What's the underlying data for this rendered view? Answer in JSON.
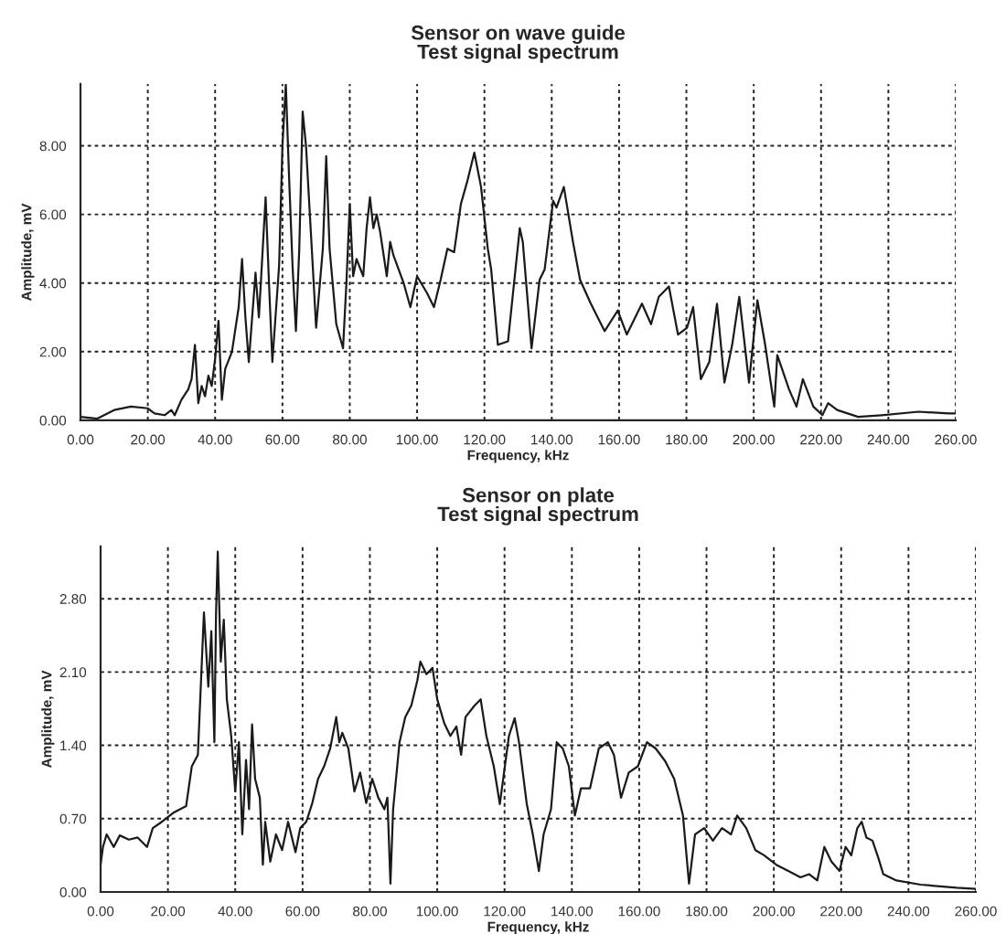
{
  "chart_data": [
    {
      "type": "line",
      "title": "Sensor on wave guide\nTest signal spectrum",
      "xlabel": "Frequency, kHz",
      "ylabel": "Amplitude, mV",
      "grid": true,
      "line_style": "solid",
      "xlim": [
        0,
        260
      ],
      "ylim": [
        0,
        9.8
      ],
      "xticks": [
        {
          "value": 0,
          "label": "0.00"
        },
        {
          "value": 20,
          "label": "20.00"
        },
        {
          "value": 40,
          "label": "40.00"
        },
        {
          "value": 60,
          "label": "60.00"
        },
        {
          "value": 80,
          "label": "80.00"
        },
        {
          "value": 100,
          "label": "100.00"
        },
        {
          "value": 120,
          "label": "120.00"
        },
        {
          "value": 140,
          "label": "140.00"
        },
        {
          "value": 160,
          "label": "160.00"
        },
        {
          "value": 180,
          "label": "180.00"
        },
        {
          "value": 200,
          "label": "200.00"
        },
        {
          "value": 220,
          "label": "220.00"
        },
        {
          "value": 240,
          "label": "240.00"
        },
        {
          "value": 260,
          "label": "260.00"
        }
      ],
      "yticks": [
        {
          "value": 0,
          "label": "0.00"
        },
        {
          "value": 2,
          "label": "2.00"
        },
        {
          "value": 4,
          "label": "4.00"
        },
        {
          "value": 6,
          "label": "6.00"
        },
        {
          "value": 8,
          "label": "8.00"
        }
      ],
      "x": [
        0,
        5,
        10,
        15,
        20,
        22,
        25,
        27,
        28,
        30,
        32,
        33,
        34,
        35,
        36,
        37,
        38,
        39,
        40,
        41,
        42,
        43,
        45,
        47,
        48,
        49,
        50,
        51,
        52,
        53,
        55,
        56,
        57,
        59,
        60,
        61,
        62,
        63,
        64,
        65,
        66,
        67,
        69,
        70,
        72,
        73,
        74,
        76,
        78,
        79,
        80,
        81,
        82,
        84,
        85,
        86,
        87,
        88,
        89,
        91,
        92,
        93,
        96,
        98,
        100,
        103,
        105,
        107,
        109,
        111,
        113,
        115,
        117,
        118,
        119,
        121,
        122,
        124,
        127,
        130.5,
        131.4,
        134,
        136.4,
        137.9,
        140.4,
        141.4,
        143.6,
        146.3,
        148.4,
        151.6,
        155.7,
        159.6,
        162.3,
        166.8,
        169.5,
        171.8,
        174.8,
        177.5,
        180.2,
        182,
        184.3,
        186.8,
        189.1,
        191.3,
        193.6,
        195.7,
        198.6,
        201.1,
        203.4,
        206.1,
        207,
        210.5,
        212.7,
        214.6,
        217.7,
        220.4,
        222.1,
        224.8,
        231,
        238,
        249,
        258,
        260
      ],
      "series": [
        {
          "color": "#1a1a1a",
          "values": [
            0.1,
            0.05,
            0.3,
            0.4,
            0.35,
            0.2,
            0.15,
            0.3,
            0.15,
            0.6,
            0.9,
            1.2,
            2.2,
            0.5,
            1.0,
            0.7,
            1.3,
            1.0,
            1.8,
            2.9,
            0.6,
            1.5,
            2.0,
            3.3,
            4.7,
            3.0,
            1.7,
            3.0,
            4.3,
            3.0,
            6.5,
            4.0,
            1.7,
            4.5,
            8.0,
            9.8,
            7.0,
            4.5,
            2.6,
            5.0,
            9.0,
            8.0,
            4.5,
            2.7,
            5.0,
            7.7,
            5.0,
            2.8,
            2.1,
            4.0,
            6.3,
            4.2,
            4.7,
            4.2,
            5.6,
            6.5,
            5.6,
            6.0,
            5.5,
            4.2,
            5.2,
            4.8,
            4.0,
            3.3,
            4.2,
            3.7,
            3.3,
            4.1,
            5.0,
            4.9,
            6.3,
            7.0,
            7.8,
            7.3,
            6.8,
            5.0,
            4.4,
            2.2,
            2.3,
            5.6,
            5.2,
            2.1,
            4.1,
            4.4,
            6.4,
            6.2,
            6.8,
            5.2,
            4.1,
            3.4,
            2.6,
            3.2,
            2.5,
            3.4,
            2.8,
            3.6,
            3.9,
            2.5,
            2.7,
            3.3,
            1.2,
            1.7,
            3.4,
            1.1,
            2.2,
            3.6,
            1.1,
            3.5,
            2.2,
            0.4,
            1.9,
            0.9,
            0.4,
            1.2,
            0.4,
            0.15,
            0.5,
            0.3,
            0.1,
            0.15,
            0.25,
            0.2,
            0.2
          ]
        }
      ]
    },
    {
      "type": "line",
      "title": "Sensor on plate\nTest signal spectrum",
      "xlabel": "Frequency, kHz",
      "ylabel": "Amplitude, mV",
      "grid": true,
      "line_style": "solid",
      "xlim": [
        0,
        260
      ],
      "ylim": [
        0,
        3.3
      ],
      "xticks": [
        {
          "value": 0,
          "label": "0.00"
        },
        {
          "value": 20,
          "label": "20.00"
        },
        {
          "value": 40,
          "label": "40.00"
        },
        {
          "value": 60,
          "label": "60.00"
        },
        {
          "value": 80,
          "label": "80.00"
        },
        {
          "value": 100,
          "label": "100.00"
        },
        {
          "value": 120,
          "label": "120.00"
        },
        {
          "value": 140,
          "label": "140.00"
        },
        {
          "value": 160,
          "label": "160.00"
        },
        {
          "value": 180,
          "label": "180.00"
        },
        {
          "value": 200,
          "label": "200.00"
        },
        {
          "value": 220,
          "label": "220.00"
        },
        {
          "value": 240,
          "label": "240.00"
        },
        {
          "value": 260,
          "label": "260.00"
        }
      ],
      "yticks": [
        {
          "value": 0,
          "label": "0.00"
        },
        {
          "value": 0.7,
          "label": "0.70"
        },
        {
          "value": 1.4,
          "label": "1.40"
        },
        {
          "value": 2.1,
          "label": "2.10"
        },
        {
          "value": 2.8,
          "label": "2.80"
        }
      ],
      "x": [
        0,
        0.7,
        1.8,
        3.9,
        5.7,
        8.4,
        11,
        13.8,
        15.5,
        18.2,
        21.8,
        25.4,
        27.1,
        28.9,
        30.7,
        32,
        32.9,
        33.8,
        34.3,
        34.8,
        35.7,
        36.6,
        37.5,
        38.8,
        40,
        41.1,
        42.1,
        43.2,
        44.1,
        45,
        45.9,
        47.3,
        48.2,
        48.9,
        50.4,
        52.1,
        53.9,
        55.7,
        57.9,
        59.3,
        61.1,
        62.9,
        64.6,
        66.4,
        68.2,
        70,
        70.9,
        71.8,
        73.6,
        75.4,
        77.1,
        78.9,
        80.7,
        82.5,
        84.3,
        85.2,
        86.1,
        86.9,
        88.8,
        90.5,
        92.3,
        94.1,
        95,
        96.8,
        98.6,
        100,
        102.1,
        103.9,
        105.7,
        107.1,
        108.4,
        111.1,
        112.9,
        114.6,
        116.8,
        118.6,
        121.3,
        123,
        124.3,
        126.6,
        128.4,
        130.2,
        131.6,
        133.8,
        135.5,
        137.3,
        139.1,
        140.9,
        142.7,
        145.4,
        148,
        150.7,
        152.5,
        154.6,
        156.9,
        159.6,
        162.3,
        164.9,
        167.7,
        170.4,
        173,
        174.8,
        176.6,
        179.3,
        181.9,
        184.6,
        187.3,
        189.1,
        191.8,
        194.5,
        197.1,
        200.7,
        204.3,
        207.9,
        210.5,
        212.9,
        215,
        217.1,
        219.5,
        221.3,
        223,
        224.8,
        226.1,
        227.5,
        229.3,
        231.1,
        232.5,
        236.4,
        243.6,
        254.3,
        260
      ],
      "series": [
        {
          "color": "#1a1a1a",
          "values": [
            0.26,
            0.43,
            0.55,
            0.43,
            0.54,
            0.5,
            0.52,
            0.43,
            0.61,
            0.67,
            0.76,
            0.82,
            1.2,
            1.31,
            2.67,
            1.96,
            2.49,
            1.43,
            2.67,
            3.25,
            2.2,
            2.6,
            1.84,
            1.49,
            0.96,
            1.43,
            0.55,
            1.26,
            0.79,
            1.6,
            1.08,
            0.9,
            0.26,
            0.67,
            0.29,
            0.55,
            0.4,
            0.67,
            0.38,
            0.61,
            0.67,
            0.85,
            1.08,
            1.2,
            1.37,
            1.67,
            1.43,
            1.52,
            1.37,
            0.96,
            1.14,
            0.85,
            1.08,
            0.9,
            0.79,
            0.9,
            0.08,
            0.79,
            1.43,
            1.67,
            1.78,
            2.02,
            2.2,
            2.08,
            2.14,
            1.84,
            1.61,
            1.49,
            1.58,
            1.31,
            1.67,
            1.78,
            1.84,
            1.49,
            1.2,
            0.84,
            1.49,
            1.66,
            1.43,
            0.84,
            0.55,
            0.2,
            0.55,
            0.79,
            1.43,
            1.37,
            1.2,
            0.73,
            0.99,
            0.99,
            1.37,
            1.43,
            1.31,
            0.9,
            1.14,
            1.2,
            1.43,
            1.37,
            1.25,
            1.08,
            0.73,
            0.08,
            0.55,
            0.61,
            0.49,
            0.61,
            0.55,
            0.73,
            0.61,
            0.4,
            0.35,
            0.26,
            0.2,
            0.14,
            0.17,
            0.11,
            0.43,
            0.29,
            0.2,
            0.43,
            0.35,
            0.61,
            0.67,
            0.52,
            0.49,
            0.32,
            0.17,
            0.11,
            0.07,
            0.04,
            0.03
          ]
        }
      ]
    }
  ]
}
